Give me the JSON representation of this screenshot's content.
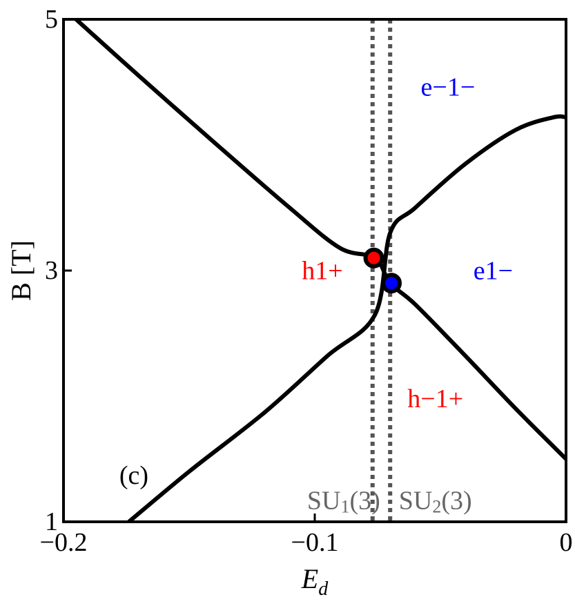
{
  "chart_data": {
    "type": "line",
    "xlabel": "E",
    "xlabel_sub": "d",
    "ylabel": "B [T]",
    "xlim": [
      -0.2,
      0
    ],
    "ylim": [
      1,
      5
    ],
    "xticks": [
      -0.2,
      -0.1,
      0
    ],
    "xtick_labels": [
      "−0.2",
      "−0.1",
      "0"
    ],
    "yticks": [
      1,
      3,
      5
    ],
    "ytick_labels": [
      "1",
      "3",
      "5"
    ],
    "grid": false,
    "series": [
      {
        "x": [
          -0.195,
          -0.17,
          -0.14,
          -0.11,
          -0.09,
          -0.076,
          -0.07,
          -0.06,
          -0.04,
          -0.02,
          0.0
        ],
        "y": [
          5.0,
          4.55,
          4.02,
          3.5,
          3.18,
          3.1,
          2.9,
          2.73,
          2.32,
          1.9,
          1.5
        ],
        "color": "#000000"
      },
      {
        "x": [
          -0.174,
          -0.15,
          -0.12,
          -0.095,
          -0.076,
          -0.07,
          -0.06,
          -0.04,
          -0.02,
          -0.005,
          0.0
        ],
        "y": [
          1.0,
          1.4,
          1.87,
          2.32,
          2.65,
          3.3,
          3.5,
          3.85,
          4.12,
          4.22,
          4.22
        ],
        "color": "#000000"
      }
    ],
    "vlines": [
      {
        "x": -0.077,
        "color": "#555555",
        "style": "dotted"
      },
      {
        "x": -0.07,
        "color": "#555555",
        "style": "dotted"
      }
    ],
    "points": [
      {
        "x": -0.0765,
        "y": 3.1,
        "fill": "#ff0000"
      },
      {
        "x": -0.0695,
        "y": 2.9,
        "fill": "#0000ff"
      }
    ],
    "annotations": [
      {
        "text": "e−1−",
        "x": -0.047,
        "y": 4.44,
        "color": "#0000ff"
      },
      {
        "text": "h1+",
        "x": -0.097,
        "y": 2.98,
        "color": "#ff0000"
      },
      {
        "text": "e1−",
        "x": -0.029,
        "y": 2.98,
        "color": "#0000ff"
      },
      {
        "text": "h−1+",
        "x": -0.052,
        "y": 1.96,
        "color": "#ff0000"
      },
      {
        "text": "(c)",
        "x": -0.172,
        "y": 1.35,
        "color": "#000000"
      }
    ],
    "region_labels": [
      {
        "base": "SU",
        "sub": "1",
        "tail": "(3)",
        "x": -0.0885,
        "y": 1.15,
        "color": "#666666"
      },
      {
        "base": "SU",
        "sub": "2",
        "tail": "(3)",
        "x": -0.052,
        "y": 1.15,
        "color": "#666666"
      }
    ]
  }
}
